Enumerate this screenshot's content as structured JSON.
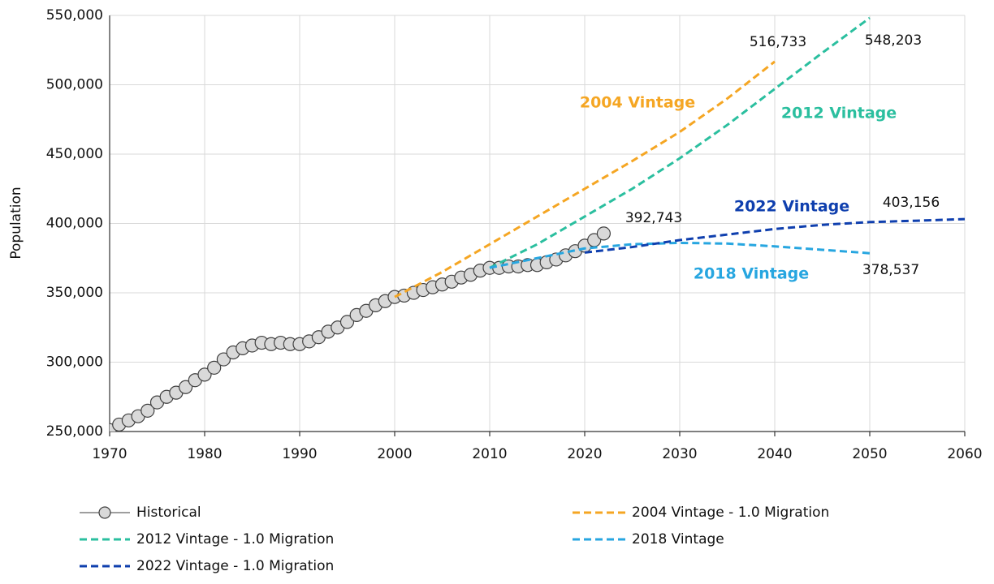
{
  "chart_data": {
    "type": "line",
    "y_label": "Population",
    "xlim": [
      1970,
      2060
    ],
    "xticks": [
      1970,
      1980,
      1990,
      2000,
      2010,
      2020,
      2030,
      2040,
      2050,
      2060
    ],
    "ylim": [
      250000,
      550000
    ],
    "yticks": [
      {
        "value": 250000,
        "label": "250,000"
      },
      {
        "value": 300000,
        "label": "300,000"
      },
      {
        "value": 350000,
        "label": "350,000"
      },
      {
        "value": 400000,
        "label": "400,000"
      },
      {
        "value": 450000,
        "label": "450,000"
      },
      {
        "value": 500000,
        "label": "500,000"
      },
      {
        "value": 550000,
        "label": "550,000"
      }
    ],
    "grid": true,
    "series": [
      {
        "name": "Historical",
        "color": "#7f7f7f",
        "markers": true,
        "x": [
          1970,
          1971,
          1972,
          1973,
          1974,
          1975,
          1976,
          1977,
          1978,
          1979,
          1980,
          1981,
          1982,
          1983,
          1984,
          1985,
          1986,
          1987,
          1988,
          1989,
          1990,
          1991,
          1992,
          1993,
          1994,
          1995,
          1996,
          1997,
          1998,
          1999,
          2000,
          2001,
          2002,
          2003,
          2004,
          2005,
          2006,
          2007,
          2008,
          2009,
          2010,
          2011,
          2012,
          2013,
          2014,
          2015,
          2016,
          2017,
          2018,
          2019,
          2020,
          2021,
          2022
        ],
        "values": [
          251000,
          255000,
          258000,
          261000,
          265000,
          271000,
          275000,
          278000,
          282000,
          287000,
          291000,
          296000,
          302000,
          307000,
          310000,
          312000,
          314000,
          313000,
          314000,
          313000,
          313000,
          315000,
          318000,
          322000,
          325000,
          329000,
          334000,
          337000,
          341000,
          344000,
          347000,
          348000,
          350000,
          352000,
          354000,
          356000,
          358000,
          361000,
          363000,
          366000,
          368000,
          368000,
          369000,
          369000,
          370000,
          370000,
          372000,
          374000,
          377000,
          380000,
          384000,
          388000,
          392743
        ],
        "end_label": "392,743"
      },
      {
        "name": "2004 Vintage - 1.0 Migration",
        "color": "#f5a623",
        "dashed": true,
        "x": [
          2000,
          2005,
          2010,
          2015,
          2020,
          2025,
          2030,
          2035,
          2040
        ],
        "values": [
          347000,
          365000,
          385000,
          405000,
          425000,
          445000,
          466000,
          490000,
          516733
        ],
        "end_label": "516,733"
      },
      {
        "name": "2012 Vintage - 1.0 Migration",
        "color": "#2bbf9f",
        "dashed": true,
        "x": [
          2010,
          2015,
          2020,
          2025,
          2030,
          2035,
          2040,
          2045,
          2050
        ],
        "values": [
          368000,
          385000,
          405000,
          425000,
          447000,
          471000,
          497000,
          523000,
          548203
        ],
        "end_label": "548,203"
      },
      {
        "name": "2018 Vintage",
        "color": "#27a6e0",
        "dashed": true,
        "x": [
          2010,
          2015,
          2020,
          2025,
          2030,
          2035,
          2040,
          2045,
          2050
        ],
        "values": [
          368000,
          375000,
          382000,
          385000,
          386000,
          385500,
          383500,
          381000,
          378537
        ],
        "end_label": "378,537"
      },
      {
        "name": "2022 Vintage - 1.0 Migration",
        "color": "#0f3fae",
        "dashed": true,
        "x": [
          2020,
          2025,
          2030,
          2035,
          2040,
          2045,
          2050,
          2055,
          2060
        ],
        "values": [
          379000,
          383000,
          388000,
          392000,
          396000,
          399000,
          401000,
          402000,
          403156
        ],
        "end_label": "403,156"
      }
    ],
    "annotations": [
      {
        "text": "2004 Vintage",
        "color": "#f5a623"
      },
      {
        "text": "2012 Vintage",
        "color": "#2bbf9f"
      },
      {
        "text": "2022 Vintage",
        "color": "#0f3fae"
      },
      {
        "text": "2018 Vintage",
        "color": "#27a6e0"
      }
    ]
  }
}
